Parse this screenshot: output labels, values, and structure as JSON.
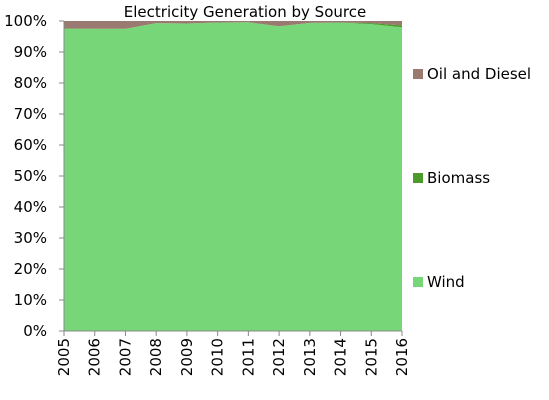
{
  "chart_data": {
    "type": "area",
    "stacked": "percent",
    "title": "Electricity Generation by Source",
    "xlabel": "",
    "ylabel": "",
    "categories": [
      "2005",
      "2006",
      "2007",
      "2008",
      "2009",
      "2010",
      "2011",
      "2012",
      "2013",
      "2014",
      "2015",
      "2016"
    ],
    "ylim": [
      0,
      100
    ],
    "yticks": [
      "0%",
      "10%",
      "20%",
      "30%",
      "40%",
      "50%",
      "60%",
      "70%",
      "80%",
      "90%",
      "100%"
    ],
    "grid": false,
    "legend_position": "right",
    "series": [
      {
        "name": "Wind",
        "color": "#77d677",
        "values": [
          97.6,
          97.5,
          97.5,
          99.3,
          99.2,
          99.5,
          99.6,
          98.3,
          99.4,
          99.5,
          99.0,
          98.0
        ]
      },
      {
        "name": "Biomass",
        "color": "#4c9a2a",
        "values": [
          0.0,
          0.0,
          0.0,
          0.0,
          0.0,
          0.0,
          0.0,
          0.0,
          0.0,
          0.0,
          0.3,
          0.6
        ]
      },
      {
        "name": "Oil and Diesel",
        "color": "#9a7a70",
        "values": [
          2.4,
          2.5,
          2.5,
          0.7,
          0.8,
          0.5,
          0.4,
          1.7,
          0.6,
          0.5,
          0.7,
          1.4
        ]
      }
    ]
  }
}
